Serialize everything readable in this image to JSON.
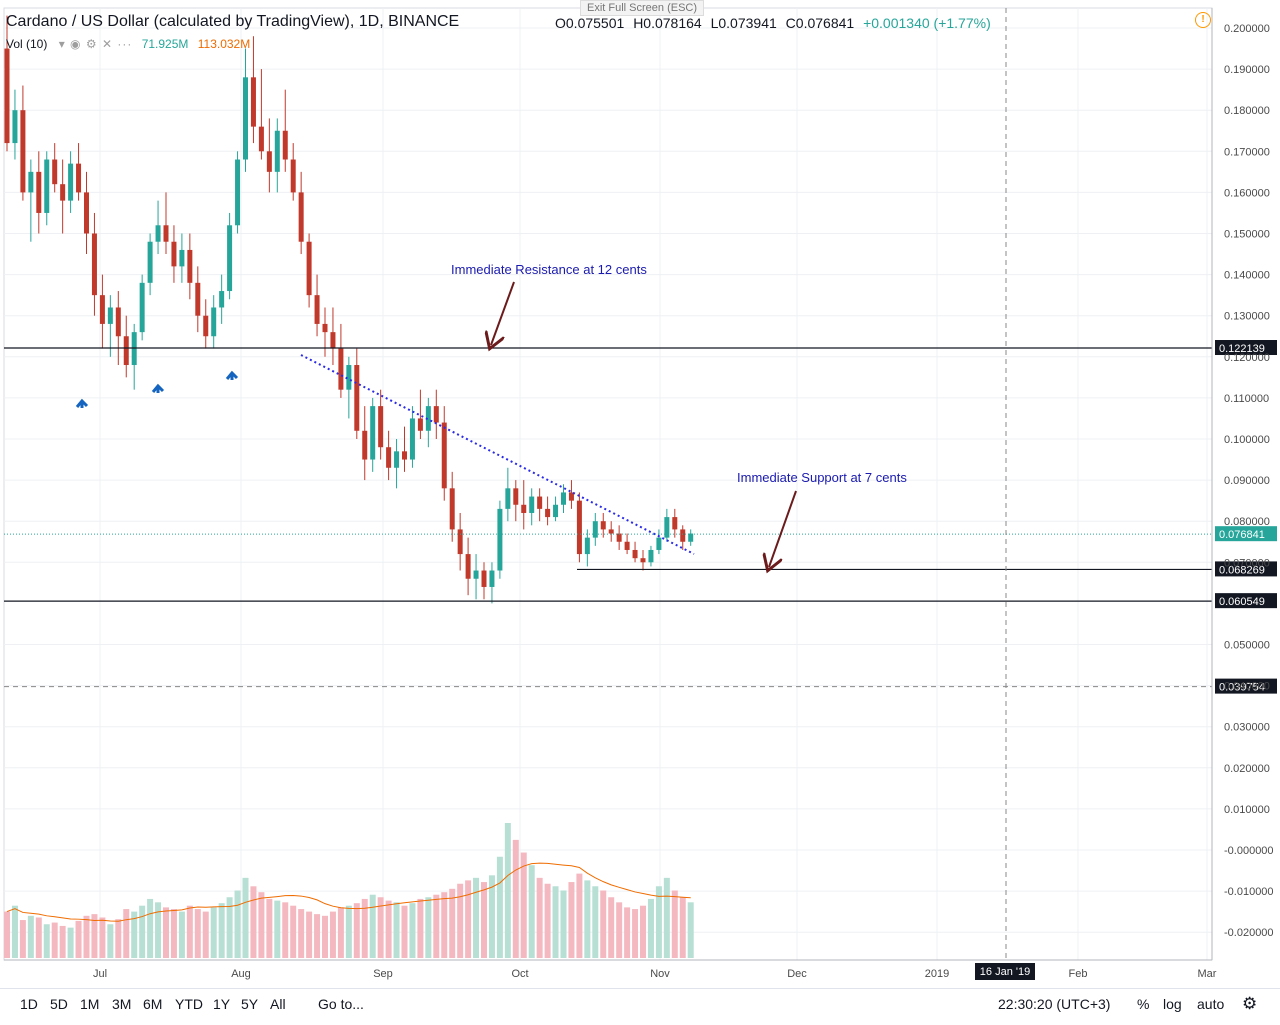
{
  "header": {
    "title": "Cardano / US Dollar (calculated by TradingView), 1D, BINANCE",
    "open": "O0.075501",
    "high": "H0.078164",
    "low": "L0.073941",
    "close": "C0.076841",
    "change": "+0.001340 (+1.77%)",
    "exit_fullscreen": "Exit Full Screen (ESC)",
    "alert_icon": "exclamation-circle-icon"
  },
  "volume_legend": {
    "label": "Vol (10)",
    "value_green": "71.925M",
    "value_orange": "113.032M"
  },
  "annotations": {
    "resistance": "Immediate Resistance at 12 cents",
    "support": "Immediate Support at 7 cents"
  },
  "price_labels": {
    "resistance_line": "0.122139",
    "current": "0.076841",
    "support_line": "0.068269",
    "lower_line": "0.060549",
    "crosshair": "0.039754"
  },
  "date_label": "16 Jan '19",
  "bottom_bar": {
    "ranges": [
      "1D",
      "5D",
      "1M",
      "3M",
      "6M",
      "YTD",
      "1Y",
      "5Y",
      "All"
    ],
    "goto": "Go to...",
    "time": "22:30:20 (UTC+3)",
    "percent": "%",
    "log": "log",
    "auto": "auto",
    "settings_icon": "gear-icon"
  },
  "colors": {
    "up": "#26a69a",
    "down": "#c0392b",
    "vol_up": "#b7dfd4",
    "vol_down": "#f4b9c0",
    "vol_ma": "#ef6c00",
    "trendline": "#2a2ae8",
    "annotation_text": "#1a1ab0",
    "arrow": "#6b1b1b",
    "marker": "#1565c0"
  },
  "chart_data": {
    "type": "candlestick",
    "symbol": "ADA/USD",
    "interval": "1D",
    "y_axis": {
      "ticks": [
        "0.200000",
        "0.190000",
        "0.180000",
        "0.170000",
        "0.160000",
        "0.150000",
        "0.140000",
        "0.130000",
        "0.120000",
        "0.110000",
        "0.100000",
        "0.090000",
        "0.080000",
        "0.070000",
        "0.050000",
        "0.040000",
        "0.030000",
        "0.020000",
        "0.010000",
        "-0.000000",
        "-0.010000",
        "-0.020000"
      ],
      "range": [
        -0.025,
        0.203
      ]
    },
    "x_axis": {
      "labels": [
        "Jul",
        "Aug",
        "Sep",
        "Oct",
        "Nov",
        "Dec",
        "2019",
        "Feb",
        "Mar"
      ]
    },
    "horizontal_lines": [
      0.122139,
      0.068269,
      0.060549
    ],
    "candles": [
      [
        0.195,
        0.203,
        0.17,
        0.172
      ],
      [
        0.172,
        0.185,
        0.168,
        0.18
      ],
      [
        0.18,
        0.186,
        0.158,
        0.16
      ],
      [
        0.16,
        0.168,
        0.148,
        0.165
      ],
      [
        0.165,
        0.17,
        0.15,
        0.155
      ],
      [
        0.155,
        0.17,
        0.152,
        0.168
      ],
      [
        0.168,
        0.172,
        0.16,
        0.162
      ],
      [
        0.162,
        0.168,
        0.15,
        0.158
      ],
      [
        0.158,
        0.17,
        0.155,
        0.167
      ],
      [
        0.167,
        0.172,
        0.158,
        0.16
      ],
      [
        0.16,
        0.165,
        0.145,
        0.15
      ],
      [
        0.15,
        0.155,
        0.13,
        0.135
      ],
      [
        0.135,
        0.14,
        0.122,
        0.128
      ],
      [
        0.128,
        0.135,
        0.12,
        0.132
      ],
      [
        0.132,
        0.136,
        0.118,
        0.125
      ],
      [
        0.125,
        0.13,
        0.115,
        0.118
      ],
      [
        0.118,
        0.128,
        0.112,
        0.126
      ],
      [
        0.126,
        0.14,
        0.124,
        0.138
      ],
      [
        0.138,
        0.15,
        0.135,
        0.148
      ],
      [
        0.148,
        0.158,
        0.145,
        0.152
      ],
      [
        0.152,
        0.16,
        0.145,
        0.148
      ],
      [
        0.148,
        0.152,
        0.138,
        0.142
      ],
      [
        0.142,
        0.15,
        0.138,
        0.146
      ],
      [
        0.146,
        0.15,
        0.134,
        0.138
      ],
      [
        0.138,
        0.142,
        0.126,
        0.13
      ],
      [
        0.13,
        0.134,
        0.122,
        0.125
      ],
      [
        0.125,
        0.135,
        0.122,
        0.132
      ],
      [
        0.132,
        0.14,
        0.128,
        0.136
      ],
      [
        0.136,
        0.155,
        0.134,
        0.152
      ],
      [
        0.152,
        0.17,
        0.15,
        0.168
      ],
      [
        0.168,
        0.195,
        0.165,
        0.188
      ],
      [
        0.188,
        0.198,
        0.172,
        0.176
      ],
      [
        0.176,
        0.19,
        0.168,
        0.17
      ],
      [
        0.17,
        0.178,
        0.16,
        0.165
      ],
      [
        0.165,
        0.178,
        0.16,
        0.175
      ],
      [
        0.175,
        0.185,
        0.165,
        0.168
      ],
      [
        0.168,
        0.172,
        0.158,
        0.16
      ],
      [
        0.16,
        0.165,
        0.145,
        0.148
      ],
      [
        0.148,
        0.15,
        0.132,
        0.135
      ],
      [
        0.135,
        0.14,
        0.125,
        0.128
      ],
      [
        0.128,
        0.132,
        0.12,
        0.126
      ],
      [
        0.126,
        0.132,
        0.118,
        0.122
      ],
      [
        0.122,
        0.128,
        0.11,
        0.112
      ],
      [
        0.112,
        0.12,
        0.105,
        0.118
      ],
      [
        0.118,
        0.122,
        0.1,
        0.102
      ],
      [
        0.102,
        0.108,
        0.09,
        0.095
      ],
      [
        0.095,
        0.11,
        0.092,
        0.108
      ],
      [
        0.108,
        0.112,
        0.095,
        0.098
      ],
      [
        0.098,
        0.102,
        0.09,
        0.093
      ],
      [
        0.093,
        0.1,
        0.088,
        0.097
      ],
      [
        0.097,
        0.103,
        0.092,
        0.095
      ],
      [
        0.095,
        0.108,
        0.093,
        0.105
      ],
      [
        0.105,
        0.112,
        0.1,
        0.102
      ],
      [
        0.102,
        0.11,
        0.098,
        0.108
      ],
      [
        0.108,
        0.112,
        0.1,
        0.104
      ],
      [
        0.104,
        0.108,
        0.085,
        0.088
      ],
      [
        0.088,
        0.092,
        0.075,
        0.078
      ],
      [
        0.078,
        0.082,
        0.068,
        0.072
      ],
      [
        0.072,
        0.076,
        0.062,
        0.066
      ],
      [
        0.066,
        0.072,
        0.061,
        0.068
      ],
      [
        0.068,
        0.07,
        0.061,
        0.064
      ],
      [
        0.064,
        0.07,
        0.06,
        0.068
      ],
      [
        0.068,
        0.085,
        0.066,
        0.083
      ],
      [
        0.083,
        0.093,
        0.08,
        0.088
      ],
      [
        0.088,
        0.09,
        0.08,
        0.084
      ],
      [
        0.084,
        0.09,
        0.078,
        0.082
      ],
      [
        0.082,
        0.088,
        0.079,
        0.086
      ],
      [
        0.086,
        0.088,
        0.08,
        0.083
      ],
      [
        0.083,
        0.086,
        0.079,
        0.081
      ],
      [
        0.081,
        0.086,
        0.08,
        0.084
      ],
      [
        0.084,
        0.089,
        0.082,
        0.087
      ],
      [
        0.087,
        0.09,
        0.083,
        0.085
      ],
      [
        0.085,
        0.087,
        0.07,
        0.072
      ],
      [
        0.072,
        0.078,
        0.069,
        0.076
      ],
      [
        0.076,
        0.082,
        0.074,
        0.08
      ],
      [
        0.08,
        0.082,
        0.076,
        0.078
      ],
      [
        0.078,
        0.08,
        0.075,
        0.077
      ],
      [
        0.077,
        0.079,
        0.073,
        0.075
      ],
      [
        0.075,
        0.077,
        0.072,
        0.073
      ],
      [
        0.073,
        0.075,
        0.07,
        0.071
      ],
      [
        0.071,
        0.073,
        0.068,
        0.07
      ],
      [
        0.07,
        0.074,
        0.069,
        0.073
      ],
      [
        0.073,
        0.078,
        0.072,
        0.076
      ],
      [
        0.076,
        0.083,
        0.075,
        0.081
      ],
      [
        0.081,
        0.083,
        0.076,
        0.078
      ],
      [
        0.078,
        0.079,
        0.073,
        0.075
      ],
      [
        0.075,
        0.078,
        0.074,
        0.077
      ]
    ],
    "volume": [
      0.55,
      0.62,
      0.45,
      0.5,
      0.48,
      0.4,
      0.42,
      0.38,
      0.36,
      0.44,
      0.5,
      0.52,
      0.48,
      0.4,
      0.46,
      0.58,
      0.55,
      0.62,
      0.7,
      0.66,
      0.6,
      0.58,
      0.55,
      0.62,
      0.58,
      0.55,
      0.6,
      0.65,
      0.72,
      0.8,
      0.95,
      0.85,
      0.78,
      0.7,
      0.68,
      0.66,
      0.62,
      0.58,
      0.55,
      0.52,
      0.5,
      0.55,
      0.6,
      0.62,
      0.65,
      0.7,
      0.75,
      0.72,
      0.68,
      0.66,
      0.62,
      0.65,
      0.7,
      0.72,
      0.75,
      0.78,
      0.82,
      0.88,
      0.92,
      0.95,
      0.9,
      0.98,
      1.2,
      1.6,
      1.4,
      1.25,
      1.1,
      0.95,
      0.88,
      0.85,
      0.8,
      0.9,
      1.0,
      0.92,
      0.85,
      0.8,
      0.72,
      0.66,
      0.6,
      0.58,
      0.62,
      0.7,
      0.85,
      0.95,
      0.8,
      0.72,
      0.66
    ]
  }
}
